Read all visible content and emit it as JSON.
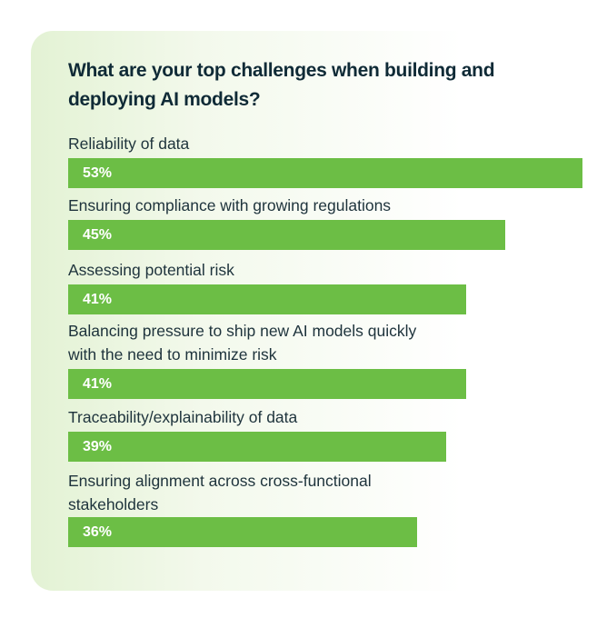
{
  "chart_data": {
    "type": "bar",
    "orientation": "horizontal",
    "title": [
      "What are your top challenges when building and",
      "deploying AI models?"
    ],
    "categories": [
      [
        "Reliability of data"
      ],
      [
        "Ensuring compliance with growing regulations"
      ],
      [
        "Assessing potential risk"
      ],
      [
        "Balancing pressure to ship new AI models quickly",
        "with the need to minimize risk"
      ],
      [
        "Traceability/explainability of data"
      ],
      [
        "Ensuring alignment across cross-functional",
        "stakeholders"
      ]
    ],
    "values": [
      53,
      45,
      41,
      41,
      39,
      36
    ],
    "value_labels": [
      "53%",
      "45%",
      "41%",
      "41%",
      "39%",
      "36%"
    ],
    "unit": "%",
    "xlim": [
      0,
      53
    ],
    "bar_color": "#6cbe45",
    "background_accent": "#e3f2d4"
  }
}
